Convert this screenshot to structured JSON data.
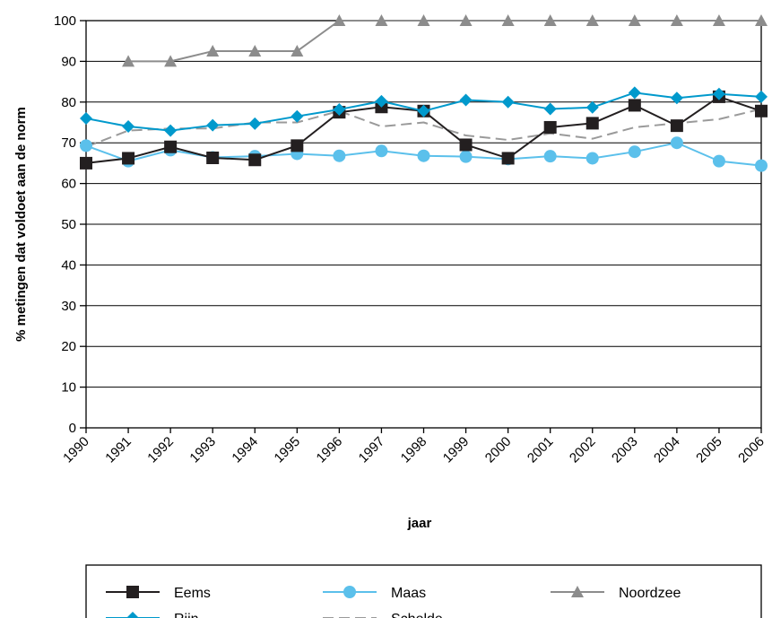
{
  "chart_data": {
    "type": "line",
    "title": "",
    "xlabel": "jaar",
    "ylabel": "% metingen dat voldoet aan de norm",
    "ylim": [
      0,
      100
    ],
    "yticks": [
      0,
      10,
      20,
      30,
      40,
      50,
      60,
      70,
      80,
      90,
      100
    ],
    "x": [
      "1990",
      "1991",
      "1992",
      "1993",
      "1994",
      "1995",
      "1996",
      "1997",
      "1998",
      "1999",
      "2000",
      "2001",
      "2002",
      "2003",
      "2004",
      "2005",
      "2006"
    ],
    "grid": "horizontal",
    "legend_position": "bottom",
    "series": [
      {
        "name": "Eems",
        "color": "#231f20",
        "marker": "square",
        "dash": "solid",
        "values": [
          65,
          66.2,
          69,
          66.3,
          65.8,
          69.3,
          77.5,
          78.8,
          77.8,
          69.5,
          66.2,
          73.8,
          74.8,
          79.2,
          74.2,
          81.3,
          77.8
        ]
      },
      {
        "name": "Maas",
        "color": "#5bc0eb",
        "marker": "circle",
        "dash": "solid",
        "values": [
          69.3,
          65.5,
          68.2,
          66.4,
          66.7,
          67.3,
          66.8,
          68,
          66.8,
          66.6,
          66,
          66.7,
          66.2,
          67.8,
          70,
          65.5,
          64.4
        ]
      },
      {
        "name": "Noordzee",
        "color": "#8c8c8c",
        "marker": "triangle",
        "dash": "solid",
        "values": [
          null,
          90,
          90,
          92.5,
          92.5,
          92.5,
          100,
          100,
          100,
          100,
          100,
          100,
          100,
          100,
          100,
          100,
          100
        ]
      },
      {
        "name": "Rijn",
        "color": "#0099cc",
        "marker": "diamond",
        "dash": "solid",
        "values": [
          76,
          74,
          73,
          74.3,
          74.7,
          76.5,
          78.2,
          80.2,
          77.8,
          80.5,
          80,
          78.3,
          78.7,
          82.3,
          81,
          82,
          81.3
        ]
      },
      {
        "name": "Schelde",
        "color": "#9a9a9a",
        "marker": "none",
        "dash": "dashed",
        "values": [
          69,
          73,
          73.5,
          73.5,
          75,
          75,
          77.8,
          74,
          75,
          71.8,
          70.7,
          72.3,
          71,
          73.8,
          74.8,
          75.8,
          78.3
        ]
      }
    ]
  }
}
